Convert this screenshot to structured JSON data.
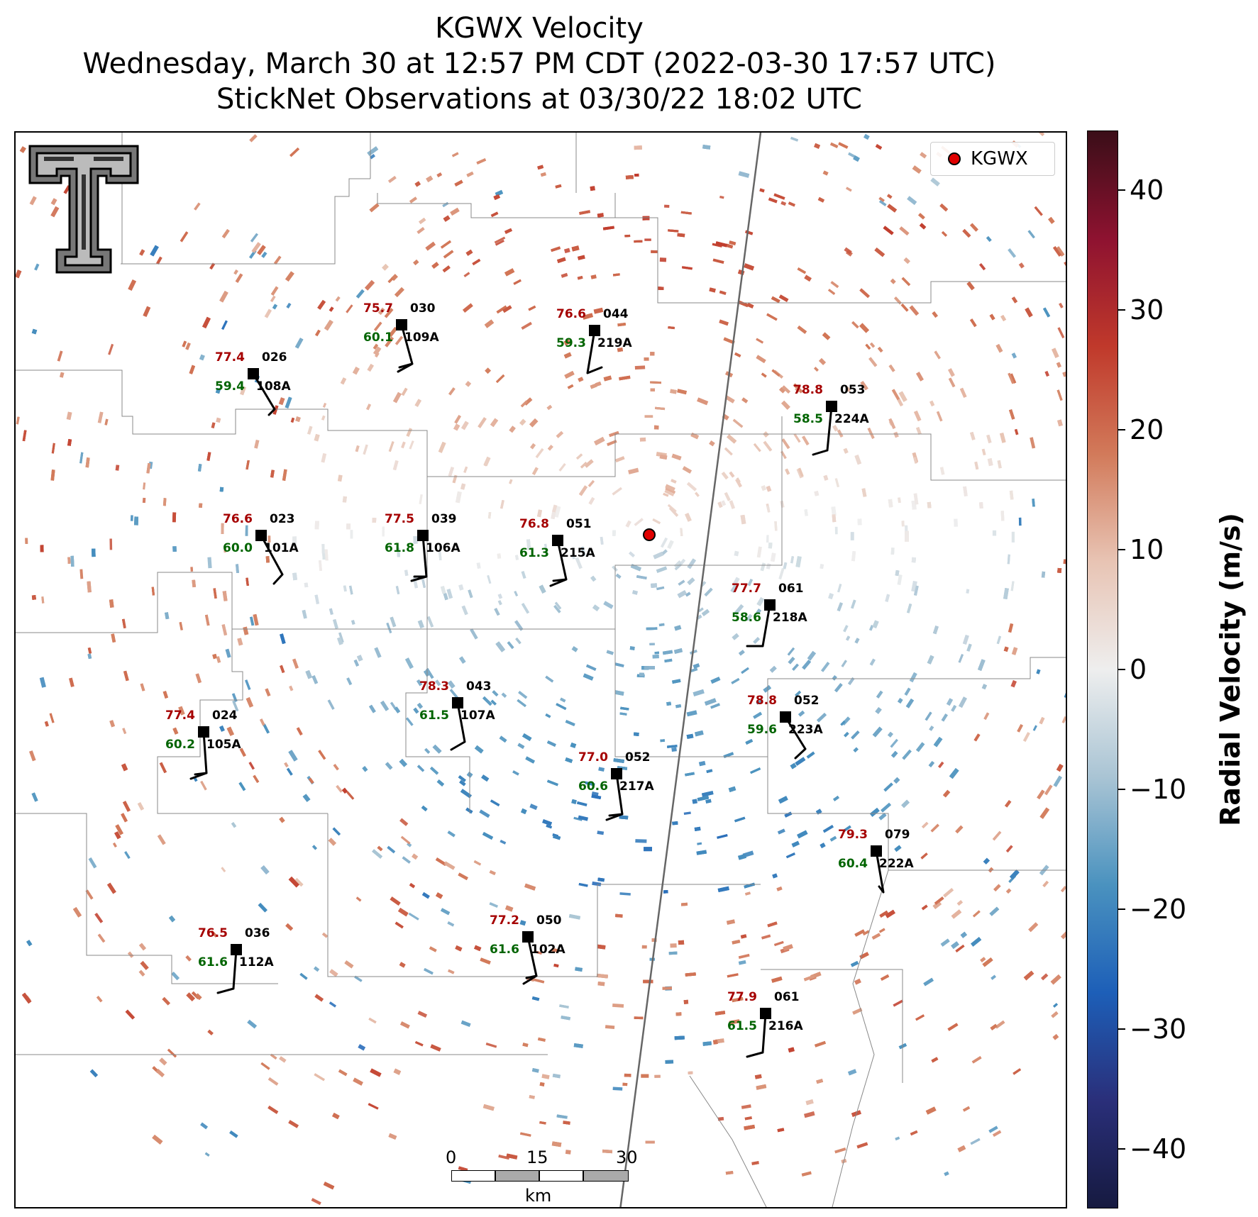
{
  "title": {
    "line1": "KGWX Velocity",
    "line2": "Wednesday, March 30 at 12:57 PM CDT (2022-03-30 17:57 UTC)",
    "line3": "StickNet Observations at 03/30/22 18:02 UTC"
  },
  "legend": {
    "label": "KGWX",
    "marker_color": "#e00000"
  },
  "colorbar": {
    "title": "Radial Velocity (m/s)",
    "range": [
      -45,
      45
    ],
    "ticks": [
      "40",
      "30",
      "20",
      "10",
      "0",
      "−10",
      "−20",
      "−30",
      "−40"
    ],
    "colors": [
      "#3a0e18",
      "#8e1230",
      "#c0392b",
      "#d27a5a",
      "#e8c4b4",
      "#eeeeee",
      "#a9c4d4",
      "#4a92bf",
      "#1d5fb8",
      "#2a2f7a",
      "#161a40"
    ]
  },
  "scalebar": {
    "labels": [
      "0",
      "15",
      "30"
    ],
    "unit": "km"
  },
  "stations": [
    {
      "id": "108A",
      "temp": "77.4",
      "dew": "59.4",
      "dir": "026"
    },
    {
      "id": "109A",
      "temp": "75.7",
      "dew": "60.1",
      "dir": "030"
    },
    {
      "id": "219A",
      "temp": "76.6",
      "dew": "59.3",
      "dir": "044"
    },
    {
      "id": "224A",
      "temp": "78.8",
      "dew": "58.5",
      "dir": "053"
    },
    {
      "id": "101A",
      "temp": "76.6",
      "dew": "60.0",
      "dir": "023"
    },
    {
      "id": "106A",
      "temp": "77.5",
      "dew": "61.8",
      "dir": "039"
    },
    {
      "id": "215A",
      "temp": "76.8",
      "dew": "61.3",
      "dir": "051"
    },
    {
      "id": "218A",
      "temp": "77.7",
      "dew": "58.6",
      "dir": "061"
    },
    {
      "id": "107A",
      "temp": "78.3",
      "dew": "61.5",
      "dir": "043"
    },
    {
      "id": "223A",
      "temp": "78.8",
      "dew": "59.6",
      "dir": "052"
    },
    {
      "id": "105A",
      "temp": "77.4",
      "dew": "60.2",
      "dir": "024"
    },
    {
      "id": "217A",
      "temp": "77.0",
      "dew": "60.6",
      "dir": "052"
    },
    {
      "id": "222A",
      "temp": "79.3",
      "dew": "60.4",
      "dir": "079"
    },
    {
      "id": "112A",
      "temp": "76.5",
      "dew": "61.6",
      "dir": "036"
    },
    {
      "id": "102A",
      "temp": "77.2",
      "dew": "61.6",
      "dir": "050"
    },
    {
      "id": "216A",
      "temp": "77.9",
      "dew": "61.5",
      "dir": "061"
    }
  ]
}
